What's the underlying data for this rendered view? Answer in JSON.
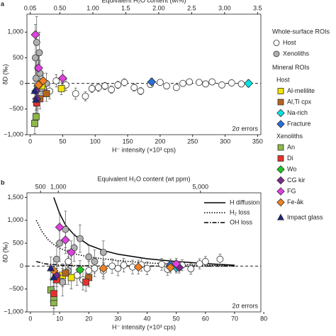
{
  "chart_data": [
    {
      "type": "scatter",
      "panel": "a",
      "x_label": "H⁻ intensity (×10³ cps)",
      "y_label": "δD (‰)",
      "x2_label": "Equivalent H₂O content (wt%)",
      "annotation": "2σ errors",
      "hline": 0,
      "xlim": [
        -5,
        355
      ],
      "xticks": [
        0,
        50,
        100,
        150,
        200,
        250,
        300,
        350
      ],
      "x2lim": [
        0,
        3.55
      ],
      "x2ticks": [
        0.05,
        {
          "value": 0.5,
          "label": "0.50"
        },
        {
          "value": 1,
          "label": "1.00"
        },
        1.5,
        {
          "value": 2,
          "label": "2.00"
        },
        2.5,
        {
          "value": 3,
          "label": "3.00"
        },
        3.5
      ],
      "ylim": [
        -1000,
        1350
      ],
      "yticks": [
        {
          "value": -1000,
          "label": "−1,000"
        },
        {
          "value": -500,
          "label": "−500"
        },
        0,
        500,
        {
          "value": 1000,
          "label": "1,000"
        }
      ],
      "series": [
        {
          "marker": "circle",
          "color": "#ffffff",
          "x": [
            85,
            95,
            105,
            115,
            125,
            135,
            145,
            160,
            170,
            185,
            200,
            210,
            225,
            235,
            245,
            260,
            270,
            280,
            295,
            310,
            325,
            20,
            30,
            40,
            55,
            70
          ],
          "values": [
            -250,
            -100,
            -80,
            -50,
            -120,
            -30,
            20,
            -80,
            -150,
            -20,
            20,
            -50,
            -80,
            0,
            30,
            20,
            -10,
            30,
            -30,
            10,
            -10,
            -100,
            -150,
            50,
            -30,
            -200
          ],
          "errors": [
            90,
            80,
            80,
            70,
            70,
            70,
            70,
            70,
            70,
            60,
            60,
            60,
            60,
            60,
            60,
            60,
            60,
            60,
            60,
            60,
            60,
            150,
            150,
            120,
            110,
            110
          ]
        },
        {
          "marker": "circle",
          "color": "#b0b0b0",
          "x": [
            8,
            10,
            12,
            15,
            18,
            12,
            25,
            9,
            14
          ],
          "values": [
            500,
            800,
            300,
            200,
            -100,
            -300,
            0,
            100,
            600
          ],
          "errors": [
            400,
            500,
            300,
            250,
            250,
            300,
            200,
            400,
            400
          ]
        },
        {
          "marker": "square",
          "color": "#f2e200",
          "x": [
            18,
            48
          ],
          "values": [
            -50,
            -100
          ],
          "errors": [
            150,
            120
          ]
        },
        {
          "marker": "square",
          "color": "#b5651d",
          "x": [
            25,
            15
          ],
          "values": [
            -200,
            -300
          ],
          "errors": [
            150,
            200
          ]
        },
        {
          "marker": "diamond",
          "color": "#00e5e5",
          "x": [
            336
          ],
          "values": [
            0
          ],
          "errors": [
            70
          ]
        },
        {
          "marker": "diamond",
          "color": "#2a6ed8",
          "x": [
            187
          ],
          "values": [
            30
          ],
          "errors": [
            70
          ]
        },
        {
          "marker": "square",
          "color": "#8db84a",
          "x": [
            7,
            9
          ],
          "values": [
            -780,
            -650
          ],
          "errors": [
            200,
            200
          ]
        },
        {
          "marker": "square",
          "color": "#e8302a",
          "x": [
            10
          ],
          "values": [
            -380
          ],
          "errors": [
            200
          ]
        },
        {
          "marker": "diamond",
          "color": "#22c422",
          "x": [
            12
          ],
          "values": [
            -50
          ],
          "errors": [
            200
          ]
        },
        {
          "marker": "diamond",
          "color": "#7b2a8c",
          "x": [
            9,
            10
          ],
          "values": [
            -150,
            -300
          ],
          "errors": [
            200,
            200
          ]
        },
        {
          "marker": "diamond",
          "color": "#e040e0",
          "x": [
            8,
            13,
            50
          ],
          "values": [
            950,
            300,
            100
          ],
          "errors": [
            200,
            250,
            150
          ]
        },
        {
          "marker": "diamond",
          "color": "#f08020",
          "x": [
            13,
            20
          ],
          "values": [
            -30,
            50
          ],
          "errors": [
            200,
            150
          ]
        },
        {
          "marker": "triangle",
          "color": "#1a237e",
          "x": [
            7,
            9
          ],
          "values": [
            -150,
            -320
          ],
          "errors": [
            200,
            200
          ]
        }
      ]
    },
    {
      "type": "scatter",
      "panel": "b",
      "x_label": "H⁻ intensity (×10³ cps)",
      "y_label": "δD (‰)",
      "x2_label": "Equivalent H₂O content (wt ppm)",
      "annotation": "2σ errors",
      "hline": 0,
      "xlim": [
        -1.2,
        79
      ],
      "xticks": [
        0,
        10,
        20,
        30,
        40,
        50,
        60,
        70,
        80
      ],
      "x2lim": [
        117,
        6700
      ],
      "x2ticks": [
        500,
        {
          "value": 1000,
          "label": "1,000"
        },
        {
          "value": 5000,
          "label": "5,000"
        }
      ],
      "ylim": [
        -1000,
        1600
      ],
      "yticks": [
        {
          "value": -1000,
          "label": "−1,000"
        },
        {
          "value": -500,
          "label": "−500"
        },
        0,
        500,
        {
          "value": 1000,
          "label": "1,000"
        },
        {
          "value": 1500,
          "label": "1,500"
        }
      ],
      "series": [
        {
          "marker": "circle",
          "color": "#ffffff",
          "x": [
            20,
            22,
            25,
            28,
            30,
            32,
            35,
            38,
            40,
            45,
            47,
            50,
            52,
            55,
            58,
            60,
            65,
            13,
            16,
            18
          ],
          "values": [
            -100,
            -50,
            -100,
            0,
            -50,
            20,
            -20,
            30,
            -50,
            40,
            -70,
            0,
            20,
            -60,
            50,
            100,
            150,
            100,
            -200,
            -300
          ],
          "errors": [
            200,
            180,
            180,
            160,
            160,
            150,
            150,
            140,
            140,
            130,
            130,
            120,
            120,
            120,
            110,
            110,
            110,
            250,
            220,
            220
          ]
        },
        {
          "marker": "circle",
          "color": "#b0b0b0",
          "x": [
            10,
            9,
            12,
            15,
            13,
            20,
            11,
            17,
            22,
            25
          ],
          "values": [
            500,
            150,
            800,
            400,
            -100,
            200,
            -350,
            600,
            100,
            300
          ],
          "errors": [
            400,
            350,
            400,
            300,
            300,
            250,
            300,
            300,
            250,
            250
          ]
        },
        {
          "marker": "square",
          "color": "#f2e200",
          "x": [
            11,
            14
          ],
          "values": [
            -200,
            -250
          ],
          "errors": [
            250,
            250
          ]
        },
        {
          "marker": "square",
          "color": "#b5651d",
          "x": [
            12,
            20
          ],
          "values": [
            -150,
            -250
          ],
          "errors": [
            250,
            200
          ]
        },
        {
          "marker": "diamond",
          "color": "#00e5e5",
          "x": [
            50
          ],
          "values": [
            -30
          ],
          "errors": [
            120
          ]
        },
        {
          "marker": "diamond",
          "color": "#2a6ed8",
          "x": [
            48
          ],
          "values": [
            30
          ],
          "errors": [
            120
          ]
        },
        {
          "marker": "square",
          "color": "#8db84a",
          "x": [
            8,
            8,
            7
          ],
          "values": [
            -800,
            -680,
            -520
          ],
          "errors": [
            250,
            250,
            250
          ]
        },
        {
          "marker": "square",
          "color": "#e8302a",
          "x": [
            8,
            9,
            19
          ],
          "values": [
            -600,
            -300,
            -350
          ],
          "errors": [
            250,
            250,
            200
          ]
        },
        {
          "marker": "diamond",
          "color": "#22c422",
          "x": [
            17
          ],
          "values": [
            -80
          ],
          "errors": [
            200
          ]
        },
        {
          "marker": "diamond",
          "color": "#7b2a8c",
          "x": [
            51,
            9
          ],
          "values": [
            -30,
            -200
          ],
          "errors": [
            120,
            250
          ]
        },
        {
          "marker": "diamond",
          "color": "#e040e0",
          "x": [
            10,
            12,
            14,
            50
          ],
          "values": [
            850,
            570,
            300,
            50
          ],
          "errors": [
            300,
            300,
            250,
            120
          ]
        },
        {
          "marker": "diamond",
          "color": "#f08020",
          "x": [
            8,
            37,
            48,
            25
          ],
          "values": [
            -100,
            -20,
            -30,
            -50
          ],
          "errors": [
            250,
            150,
            120,
            180
          ]
        },
        {
          "marker": "triangle",
          "color": "#1a237e",
          "x": [
            8,
            7
          ],
          "values": [
            -250,
            -50
          ],
          "errors": [
            250,
            250
          ]
        }
      ],
      "models": [
        {
          "name": "H diffusion",
          "dash": "solid",
          "color": "#000000",
          "x": [
            8,
            10,
            12,
            15,
            20,
            25,
            30,
            40,
            50,
            60,
            70
          ],
          "values": [
            1500,
            1150,
            900,
            680,
            460,
            340,
            260,
            160,
            100,
            55,
            20
          ]
        },
        {
          "name": "H₂ loss",
          "dash": "dotted",
          "color": "#000000",
          "x": [
            2,
            4,
            6,
            8,
            10,
            15,
            20,
            30,
            40,
            50,
            60,
            70
          ],
          "values": [
            1000,
            750,
            580,
            470,
            390,
            270,
            200,
            120,
            70,
            40,
            20,
            5
          ]
        },
        {
          "name": "OH loss",
          "dash": "dashdot",
          "color": "#000000",
          "x": [
            2,
            5,
            10,
            20,
            40,
            70
          ],
          "values": [
            100,
            50,
            20,
            5,
            0,
            0
          ]
        }
      ]
    }
  ],
  "legend": [
    {
      "title": "Whole-surface ROIs",
      "items": [
        {
          "name": "Host",
          "marker": "circle",
          "color": "#ffffff"
        },
        {
          "name": "Xenoliths",
          "marker": "circle",
          "color": "#b0b0b0"
        }
      ]
    },
    {
      "title": "Mineral ROIs",
      "subgroups": [
        {
          "title": "Host",
          "items": [
            {
              "name": "Al-melilite",
              "marker": "square",
              "color": "#f2e200"
            },
            {
              "name": "Al,Ti cpx",
              "marker": "square",
              "color": "#b5651d"
            },
            {
              "name": "Na-rich",
              "marker": "diamond",
              "color": "#00e5e5"
            },
            {
              "name": "Fracture",
              "marker": "diamond",
              "color": "#2a6ed8"
            }
          ]
        },
        {
          "title": "Xenoliths",
          "items": [
            {
              "name": "An",
              "marker": "square",
              "color": "#8db84a"
            },
            {
              "name": "Di",
              "marker": "square",
              "color": "#e8302a"
            },
            {
              "name": "Wo",
              "marker": "diamond",
              "color": "#22c422"
            },
            {
              "name": "CG kir",
              "marker": "diamond",
              "color": "#7b2a8c"
            },
            {
              "name": "FG",
              "marker": "diamond",
              "color": "#e040e0"
            },
            {
              "name": "Fe-åk",
              "marker": "diamond",
              "color": "#f08020"
            }
          ]
        },
        {
          "items": [
            {
              "name": "Impact glass",
              "marker": "triangle",
              "color": "#1a237e"
            }
          ]
        }
      ]
    }
  ]
}
